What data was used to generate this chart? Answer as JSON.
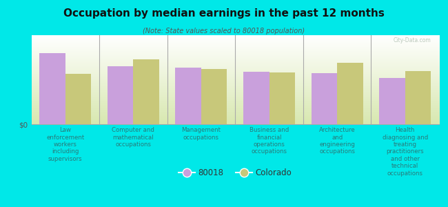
{
  "title": "Occupation by median earnings in the past 12 months",
  "subtitle": "(Note: State values scaled to 80018 population)",
  "background_color": "#00e8e8",
  "plot_bg_top": "#ffffff",
  "plot_bg_bottom": "#d8e8b0",
  "categories": [
    "Law\nenforcement\nworkers\nincluding\nsupervisors",
    "Computer and\nmathematical\noccupations",
    "Management\noccupations",
    "Business and\nfinancial\noperations\noccupations",
    "Architecture\nand\nengineering\noccupations",
    "Health\ndiagnosing and\ntreating\npractitioners\nand other\ntechnical\noccupations"
  ],
  "values_80018": [
    0.88,
    0.72,
    0.7,
    0.65,
    0.63,
    0.57
  ],
  "values_colorado": [
    0.62,
    0.8,
    0.68,
    0.64,
    0.76,
    0.66
  ],
  "color_80018": "#c9a0dc",
  "color_colorado": "#c8c87a",
  "bar_width": 0.38,
  "ylabel": "$0",
  "legend_label_80018": "80018",
  "legend_label_colorado": "Colorado",
  "watermark": "City-Data.com",
  "tick_color": "#2a7a7a",
  "title_color": "#111111",
  "subtitle_color": "#555555"
}
